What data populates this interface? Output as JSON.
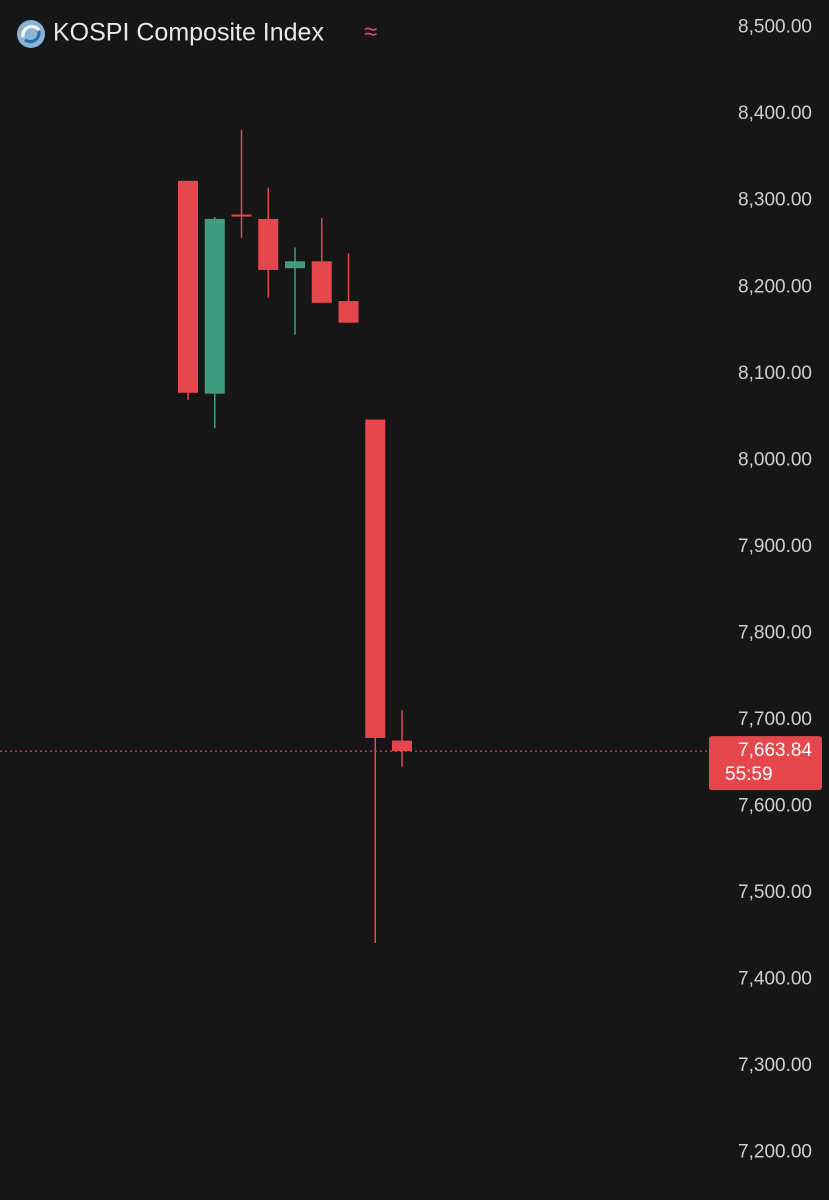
{
  "chart_data": {
    "type": "candlestick",
    "title": "KOSPI Composite Index",
    "indicator": "≈",
    "categories": [
      null,
      null,
      null,
      null,
      null,
      null,
      null,
      null,
      null
    ],
    "open": [
      8323,
      8077,
      8284,
      8279,
      8222,
      8230,
      8184,
      8047,
      7676
    ],
    "high": [
      8323,
      8281,
      8382,
      8315,
      8246,
      8280,
      8239,
      8047,
      7711
    ],
    "low": [
      8070,
      8037,
      8257,
      8188,
      8145,
      8182,
      8159,
      7442,
      7646
    ],
    "close": [
      8078,
      8279,
      8282,
      8220,
      8230,
      8182,
      8159,
      7679,
      7663.84
    ],
    "up_color": "#3f9c7f",
    "down_color": "#e5474d",
    "ylim": [
      7145,
      8532
    ],
    "yticks": [
      {
        "value": 8500,
        "label": "8,500.00"
      },
      {
        "value": 8400,
        "label": "8,400.00"
      },
      {
        "value": 8300,
        "label": "8,300.00"
      },
      {
        "value": 8200,
        "label": "8,200.00"
      },
      {
        "value": 8100,
        "label": "8,100.00"
      },
      {
        "value": 8000,
        "label": "8,000.00"
      },
      {
        "value": 7900,
        "label": "7,900.00"
      },
      {
        "value": 7800,
        "label": "7,800.00"
      },
      {
        "value": 7700,
        "label": "7,700.00"
      },
      {
        "value": 7600,
        "label": "7,600.00"
      },
      {
        "value": 7500,
        "label": "7,500.00"
      },
      {
        "value": 7400,
        "label": "7,400.00"
      },
      {
        "value": 7300,
        "label": "7,300.00"
      },
      {
        "value": 7200,
        "label": "7,200.00"
      }
    ],
    "last_price": {
      "value": 7663.84,
      "label": "7,663.84"
    },
    "countdown": "55:59",
    "grid": false
  }
}
